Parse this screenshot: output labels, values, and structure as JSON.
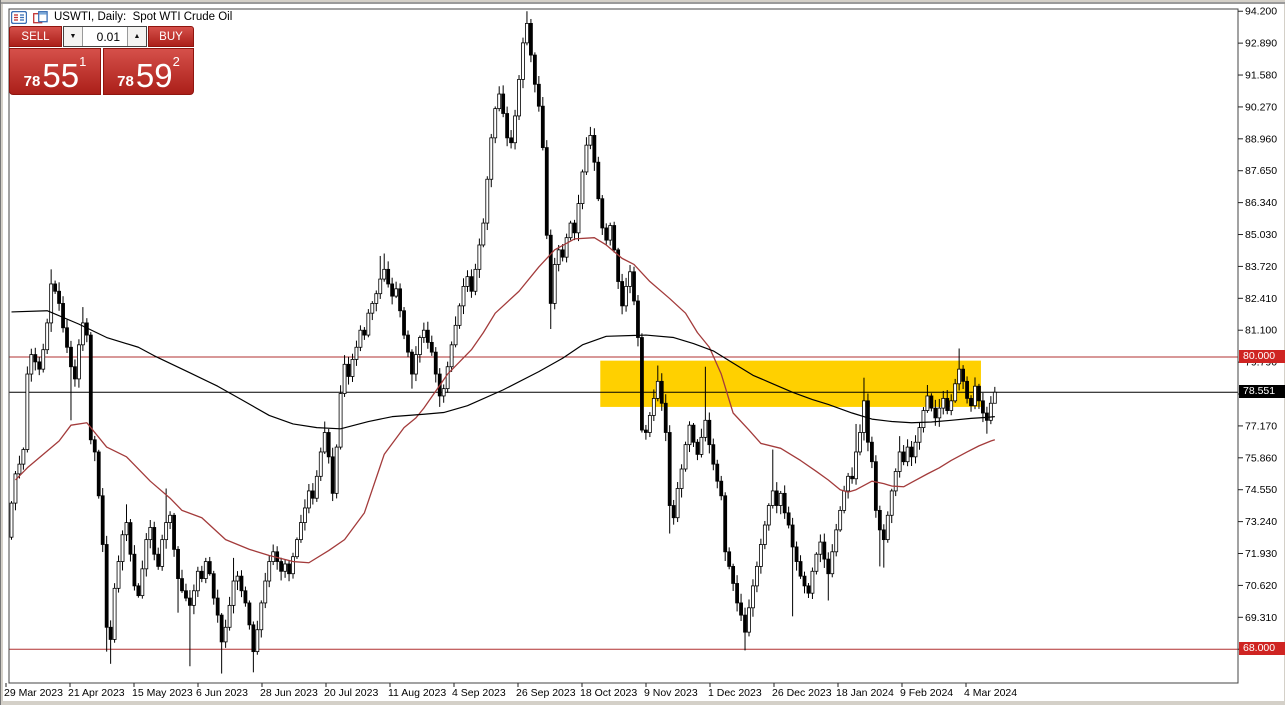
{
  "window": {
    "title": "USWTI, Daily:  Spot WTI Crude Oil",
    "title_icons": [
      "chart-list-icon",
      "new-chart-icon"
    ]
  },
  "trade_panel": {
    "sell_label": "SELL",
    "buy_label": "BUY",
    "volume": "0.01",
    "sell_price": {
      "small": "78",
      "big": "55",
      "sup": "1"
    },
    "buy_price": {
      "small": "78",
      "big": "59",
      "sup": "2"
    }
  },
  "colors": {
    "button_red": "#b2221d",
    "badge_red": "#cf2422",
    "badge_black": "#000000",
    "hline_red": "#b03030",
    "zone_yellow": "#ffd000",
    "ma_fast_red": "#a33b3b",
    "ma_slow_black": "#000000",
    "candle_up": "#ffffff",
    "candle_down": "#000000"
  },
  "chart_data": {
    "type": "candlestick",
    "symbol": "USWTI",
    "timeframe": "Daily",
    "description": "Spot WTI Crude Oil",
    "current_bid": 78.551,
    "y_axis": {
      "min": 66.8,
      "max": 94.2,
      "tick_step": 1.31,
      "labels": [
        "94.200",
        "92.890",
        "91.580",
        "90.270",
        "88.960",
        "87.650",
        "86.340",
        "85.030",
        "83.720",
        "82.410",
        "81.100",
        "79.790",
        "78.480",
        "77.170",
        "75.860",
        "74.550",
        "73.240",
        "71.930",
        "70.620",
        "69.310",
        "68.000"
      ],
      "badges": [
        {
          "label": "80.000",
          "price": 80.0,
          "bg": "#cf2422"
        },
        {
          "label": "78.551",
          "price": 78.551,
          "bg": "#000000"
        },
        {
          "label": "68.000",
          "price": 68.0,
          "bg": "#cf2422"
        }
      ]
    },
    "x_axis": {
      "labels": [
        "29 Mar 2023",
        "21 Apr 2023",
        "15 May 2023",
        "6 Jun 2023",
        "28 Jun 2023",
        "20 Jul 2023",
        "11 Aug 2023",
        "4 Sep 2023",
        "26 Sep 2023",
        "18 Oct 2023",
        "9 Nov 2023",
        "1 Dec 2023",
        "26 Dec 2023",
        "18 Jan 2024",
        "9 Feb 2024",
        "4 Mar 2024"
      ]
    },
    "hlines": [
      {
        "price": 80.0,
        "color": "#b03030",
        "width": 1
      },
      {
        "price": 68.0,
        "color": "#b03030",
        "width": 1
      },
      {
        "price": 78.551,
        "color": "#000000",
        "width": 1
      }
    ],
    "zone": {
      "from_index": 149,
      "to_index": 244,
      "price_top": 79.85,
      "price_bottom": 77.95,
      "color": "#ffd000"
    },
    "candles": {
      "open_first": 72.6,
      "closes": [
        74.0,
        75.2,
        75.6,
        76.2,
        79.3,
        80.1,
        79.8,
        79.5,
        80.3,
        81.4,
        83.0,
        82.7,
        82.2,
        81.2,
        80.4,
        79.6,
        79.1,
        80.5,
        81.4,
        80.9,
        76.6,
        76.1,
        74.3,
        72.3,
        68.9,
        68.4,
        70.5,
        71.6,
        72.7,
        73.2,
        71.9,
        70.6,
        70.2,
        71.3,
        72.5,
        73.0,
        71.9,
        71.4,
        72.5,
        73.2,
        73.5,
        72.1,
        70.9,
        70.4,
        70.1,
        69.8,
        70.4,
        71.2,
        70.9,
        71.6,
        71.1,
        70.1,
        69.4,
        68.3,
        68.9,
        69.8,
        70.8,
        71.0,
        70.4,
        69.9,
        69.0,
        67.9,
        68.8,
        69.9,
        70.8,
        71.6,
        72.0,
        71.6,
        71.2,
        71.5,
        71.1,
        71.8,
        72.5,
        73.2,
        73.8,
        74.5,
        74.2,
        75.1,
        76.1,
        76.9,
        75.9,
        74.4,
        76.3,
        78.5,
        79.7,
        79.2,
        79.9,
        80.4,
        81.1,
        80.9,
        81.8,
        82.2,
        82.6,
        83.2,
        83.6,
        83.0,
        82.5,
        82.8,
        81.9,
        80.9,
        80.2,
        79.3,
        80.1,
        80.8,
        81.1,
        80.6,
        80.2,
        79.3,
        78.4,
        78.7,
        79.6,
        80.5,
        81.3,
        82.1,
        82.9,
        83.3,
        82.7,
        83.6,
        84.6,
        85.5,
        87.3,
        89.0,
        90.2,
        90.8,
        90.0,
        89.0,
        88.8,
        89.9,
        91.4,
        92.9,
        93.7,
        92.4,
        91.2,
        90.3,
        88.6,
        85.0,
        82.2,
        83.8,
        84.4,
        84.1,
        84.9,
        85.5,
        85.1,
        86.3,
        87.6,
        88.7,
        89.1,
        88.0,
        86.5,
        85.3,
        84.8,
        85.4,
        84.4,
        83.1,
        82.1,
        82.9,
        83.5,
        82.3,
        80.8,
        77.0,
        76.9,
        77.6,
        78.3,
        79.0,
        78.1,
        76.9,
        73.9,
        73.4,
        74.6,
        75.4,
        76.4,
        77.2,
        76.5,
        76.0,
        76.7,
        77.4,
        76.4,
        75.6,
        74.9,
        74.3,
        72.0,
        71.4,
        70.7,
        69.9,
        69.4,
        68.7,
        69.7,
        70.6,
        71.4,
        72.3,
        73.1,
        73.9,
        74.5,
        73.9,
        74.4,
        73.6,
        73.1,
        72.2,
        71.6,
        71.0,
        70.6,
        70.3,
        71.2,
        71.9,
        72.4,
        71.7,
        71.1,
        72.0,
        72.9,
        73.7,
        74.5,
        75.1,
        75.0,
        76.1,
        76.9,
        78.2,
        76.5,
        75.7,
        73.7,
        72.9,
        72.5,
        73.5,
        74.5,
        75.3,
        76.1,
        75.7,
        76.3,
        75.9,
        76.5,
        77.1,
        77.8,
        78.4,
        77.9,
        77.5,
        77.9,
        78.3,
        77.8,
        78.2,
        78.9,
        79.5,
        79.0,
        78.3,
        78.0,
        78.8,
        78.2,
        77.7,
        77.4,
        78.1,
        78.551
      ],
      "wick_overrides": {
        "10": [
          83.6,
          null
        ],
        "15": [
          null,
          77.4
        ],
        "18": [
          82.05,
          null
        ],
        "24": [
          null,
          67.9
        ],
        "25": [
          null,
          67.4
        ],
        "29": [
          73.95,
          null
        ],
        "39": [
          74.6,
          null
        ],
        "42": [
          null,
          69.5
        ],
        "45": [
          null,
          67.3
        ],
        "53": [
          null,
          67.0
        ],
        "56": [
          71.75,
          null
        ],
        "61": [
          null,
          67.05
        ],
        "79": [
          77.35,
          null
        ],
        "93": [
          84.15,
          null
        ],
        "94": [
          84.25,
          null
        ],
        "101": [
          null,
          78.7
        ],
        "108": [
          null,
          77.95
        ],
        "130": [
          94.2,
          null
        ],
        "136": [
          null,
          81.15
        ],
        "146": [
          89.45,
          null
        ],
        "163": [
          79.65,
          null
        ],
        "166": [
          null,
          72.75
        ],
        "175": [
          79.6,
          null
        ],
        "185": [
          null,
          67.95
        ],
        "192": [
          76.2,
          null
        ],
        "197": [
          null,
          69.35
        ],
        "206": [
          null,
          70.0
        ],
        "213": [
          77.25,
          null
        ],
        "215": [
          79.15,
          null
        ],
        "219": [
          null,
          71.4
        ],
        "220": [
          null,
          71.35
        ],
        "224": [
          76.75,
          null
        ],
        "231": [
          78.85,
          null
        ],
        "239": [
          80.35,
          null
        ],
        "246": [
          null,
          76.85
        ],
        "248": [
          null,
          78.15
        ]
      }
    },
    "ma_slow_black": [
      [
        0,
        81.85
      ],
      [
        9,
        81.9
      ],
      [
        17,
        81.35
      ],
      [
        24,
        80.8
      ],
      [
        32,
        80.4
      ],
      [
        36,
        80.05
      ],
      [
        45,
        79.35
      ],
      [
        52,
        78.8
      ],
      [
        58,
        78.25
      ],
      [
        65,
        77.6
      ],
      [
        71,
        77.25
      ],
      [
        77,
        77.1
      ],
      [
        83,
        77.05
      ],
      [
        90,
        77.35
      ],
      [
        96,
        77.55
      ],
      [
        104,
        77.65
      ],
      [
        109,
        77.72
      ],
      [
        115,
        78.0
      ],
      [
        124,
        78.65
      ],
      [
        133,
        79.4
      ],
      [
        139,
        79.95
      ],
      [
        144,
        80.5
      ],
      [
        150,
        80.85
      ],
      [
        160,
        80.9
      ],
      [
        167,
        80.8
      ],
      [
        172,
        80.55
      ],
      [
        177,
        80.25
      ],
      [
        182,
        79.75
      ],
      [
        187,
        79.25
      ],
      [
        192,
        78.9
      ],
      [
        197,
        78.55
      ],
      [
        202,
        78.25
      ],
      [
        206,
        78.05
      ],
      [
        212,
        77.7
      ],
      [
        217,
        77.45
      ],
      [
        222,
        77.35
      ],
      [
        227,
        77.3
      ],
      [
        232,
        77.33
      ],
      [
        237,
        77.4
      ],
      [
        242,
        77.48
      ],
      [
        246,
        77.52
      ],
      [
        248,
        77.55
      ]
    ],
    "ma_fast_red": [
      [
        1,
        74.95
      ],
      [
        4,
        75.45
      ],
      [
        12,
        76.55
      ],
      [
        15,
        77.2
      ],
      [
        19,
        77.3
      ],
      [
        24,
        76.3
      ],
      [
        29,
        75.9
      ],
      [
        35,
        74.9
      ],
      [
        40,
        74.2
      ],
      [
        43,
        73.7
      ],
      [
        48,
        73.4
      ],
      [
        54,
        72.5
      ],
      [
        60,
        72.1
      ],
      [
        65,
        71.85
      ],
      [
        71,
        71.6
      ],
      [
        75,
        71.55
      ],
      [
        80,
        72.05
      ],
      [
        84,
        72.5
      ],
      [
        89,
        73.6
      ],
      [
        94,
        76.0
      ],
      [
        99,
        77.1
      ],
      [
        102,
        77.5
      ],
      [
        104,
        77.9
      ],
      [
        110,
        79.3
      ],
      [
        116,
        80.3
      ],
      [
        119,
        81.0
      ],
      [
        122,
        81.8
      ],
      [
        128,
        82.7
      ],
      [
        133,
        83.7
      ],
      [
        137,
        84.4
      ],
      [
        142,
        84.85
      ],
      [
        147,
        84.9
      ],
      [
        150,
        84.6
      ],
      [
        154,
        84.05
      ],
      [
        157,
        83.8
      ],
      [
        161,
        83.1
      ],
      [
        166,
        82.4
      ],
      [
        170,
        81.8
      ],
      [
        173,
        81.0
      ],
      [
        176,
        80.4
      ],
      [
        179,
        79.3
      ],
      [
        182,
        77.7
      ],
      [
        186,
        77.0
      ],
      [
        189,
        76.45
      ],
      [
        194,
        76.25
      ],
      [
        199,
        75.75
      ],
      [
        203,
        75.3
      ],
      [
        206,
        74.95
      ],
      [
        209,
        74.55
      ],
      [
        211,
        74.45
      ],
      [
        213,
        74.55
      ],
      [
        217,
        74.9
      ],
      [
        220,
        74.8
      ],
      [
        222,
        74.7
      ],
      [
        225,
        74.67
      ],
      [
        227,
        74.85
      ],
      [
        231,
        75.2
      ],
      [
        234,
        75.45
      ],
      [
        237,
        75.75
      ],
      [
        241,
        76.1
      ],
      [
        244,
        76.35
      ],
      [
        247,
        76.55
      ],
      [
        248,
        76.6
      ]
    ]
  }
}
